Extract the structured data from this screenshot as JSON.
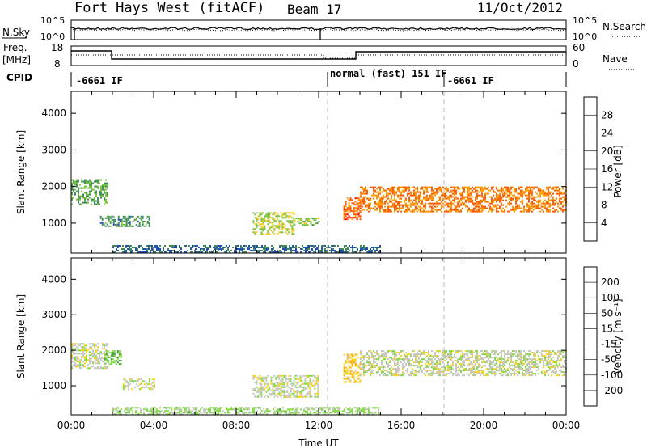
{
  "header": {
    "site": "Fort Hays West (fitACF)",
    "beam": "Beam 17",
    "date": "11/Oct/2012"
  },
  "top_panels": {
    "nsky_label": "N.Sky",
    "nsearch_label": "N.Search",
    "nsky_ticks": [
      "10^5",
      "10^0"
    ],
    "freq_label": "Freq.",
    "freq_unit": "[MHz]",
    "freq_ticks": [
      "18",
      "8"
    ],
    "nave_label": "Nave",
    "nave_ticks": [
      "60",
      "0"
    ],
    "cpid_label": "CPID",
    "cpid_segments": [
      {
        "label": "-6661 IF",
        "start": 0,
        "end": 12.5
      },
      {
        "label": "normal (fast) 151 IF",
        "start": 12.5,
        "end": 18.1
      },
      {
        "label": "-6661 IF",
        "start": 18.1,
        "end": 24
      }
    ]
  },
  "colors": {
    "power": [
      "#0000ff",
      "#1f4fbf",
      "#3f8a55",
      "#77c040",
      "#f5c81a",
      "#ff9a00",
      "#ff5a00",
      "#ff0000"
    ],
    "velocity": [
      "#1a2cd6",
      "#2e7d4e",
      "#3f9a3f",
      "#7fdc3f",
      "#c7c7c0",
      "#f5d510",
      "#ff9e00",
      "#ff5a00",
      "#ff0000"
    ]
  },
  "chart_data": [
    {
      "type": "heatmap",
      "name": "power",
      "xlabel": "",
      "ylabel": "Slant Range [km]",
      "xlim": [
        0,
        24
      ],
      "ylim": [
        180,
        4600
      ],
      "yticks": [
        1000,
        2000,
        3000,
        4000
      ],
      "xticks_hours": [
        0,
        4,
        8,
        12,
        16,
        20,
        24
      ],
      "colorbar": {
        "label": "Power [dB]",
        "ticks": [
          "4",
          "8",
          "12",
          "16",
          "20",
          "24",
          "28"
        ],
        "range": [
          0,
          32
        ]
      },
      "echo_regions": [
        {
          "t0": 0.0,
          "t1": 1.8,
          "r0": 1500,
          "r1": 2200,
          "value": 12
        },
        {
          "t0": 1.4,
          "t1": 3.8,
          "r0": 900,
          "r1": 1200,
          "value": 10
        },
        {
          "t0": 8.8,
          "t1": 10.8,
          "r0": 700,
          "r1": 1300,
          "value": 16
        },
        {
          "t0": 10.8,
          "t1": 12.0,
          "r0": 950,
          "r1": 1150,
          "value": 14
        },
        {
          "t0": 13.2,
          "t1": 14.0,
          "r0": 1100,
          "r1": 1700,
          "value": 26
        },
        {
          "t0": 14.0,
          "t1": 24.0,
          "r0": 1300,
          "r1": 2000,
          "value": 24
        },
        {
          "t0": 2.0,
          "t1": 15.0,
          "r0": 180,
          "r1": 400,
          "value": 8
        }
      ]
    },
    {
      "type": "heatmap",
      "name": "velocity",
      "xlabel": "Time UT",
      "ylabel": "Slant Range [km]",
      "xlim": [
        0,
        24
      ],
      "ylim": [
        180,
        4600
      ],
      "yticks": [
        1000,
        2000,
        3000,
        4000
      ],
      "xtick_labels": [
        "00:00",
        "04:00",
        "08:00",
        "12:00",
        "16:00",
        "20:00",
        "00:00"
      ],
      "colorbar": {
        "label": "Velocity [m s⁻¹]",
        "ticks": [
          "200",
          "100",
          "50",
          "15",
          "-15",
          "-50",
          "-100",
          "-200"
        ],
        "range": [
          -250,
          250
        ]
      },
      "echo_regions": [
        {
          "t0": 0.0,
          "t1": 1.8,
          "r0": 1500,
          "r1": 2200,
          "value": 0
        },
        {
          "t0": 1.6,
          "t1": 2.4,
          "r0": 1600,
          "r1": 2000,
          "value": -80
        },
        {
          "t0": 2.5,
          "t1": 4.0,
          "r0": 900,
          "r1": 1200,
          "value": 0
        },
        {
          "t0": 8.8,
          "t1": 12.0,
          "r0": 700,
          "r1": 1300,
          "value": 0
        },
        {
          "t0": 13.2,
          "t1": 14.0,
          "r0": 1100,
          "r1": 1900,
          "value": 60
        },
        {
          "t0": 14.0,
          "t1": 24.0,
          "r0": 1300,
          "r1": 2000,
          "value": 0
        },
        {
          "t0": 2.0,
          "t1": 15.0,
          "r0": 180,
          "r1": 400,
          "value": -40
        }
      ]
    }
  ]
}
